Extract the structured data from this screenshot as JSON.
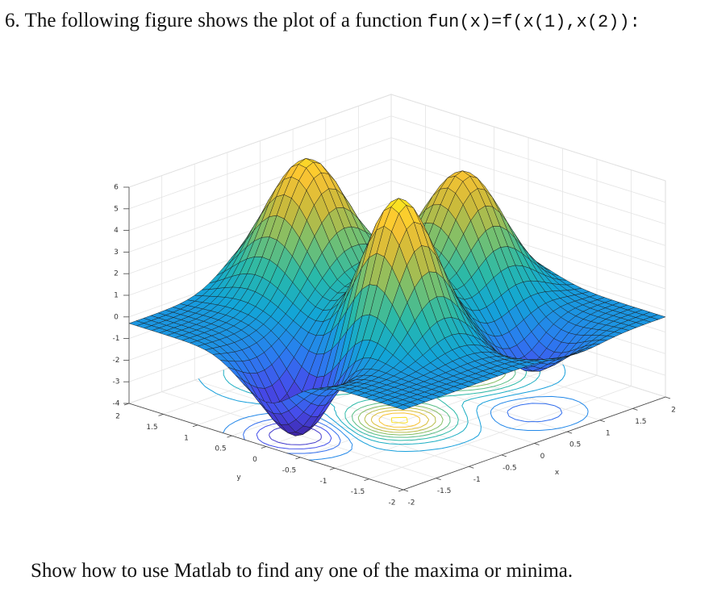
{
  "question": {
    "number": "6.",
    "text": "The following figure shows the plot of a function",
    "code": "fun(x)=f(x(1),x(2)):"
  },
  "figure": {
    "xlabel": "x",
    "ylabel": "y",
    "xticks": [
      -2,
      -1.5,
      -1,
      -0.5,
      0,
      0.5,
      1,
      1.5,
      2
    ],
    "yticks": [
      -2,
      -1.5,
      -1,
      -0.5,
      0,
      0.5,
      1,
      1.5,
      2
    ],
    "zticks": [
      -4,
      -3,
      -2,
      -1,
      0,
      1,
      2,
      3,
      4,
      5,
      6
    ]
  },
  "instruction": "Show how to use Matlab to find any one of the maxima or minima."
}
